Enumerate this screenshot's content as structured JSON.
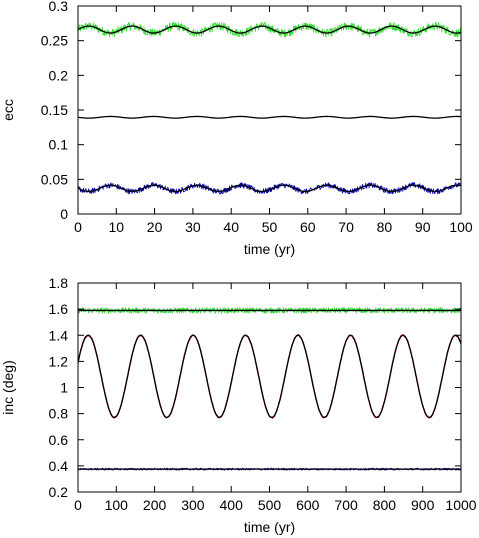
{
  "chart_data": [
    {
      "type": "line",
      "xlabel": "time (yr)",
      "ylabel": "ecc",
      "xlim": [
        0,
        100
      ],
      "ylim": [
        0,
        0.3
      ],
      "xticks": [
        0,
        10,
        20,
        30,
        40,
        50,
        60,
        70,
        80,
        90,
        100
      ],
      "yticks": [
        0,
        0.05,
        0.1,
        0.15,
        0.2,
        0.25,
        0.3
      ],
      "ytick_labels": [
        "0",
        "0.05",
        "0.1",
        "0.15",
        "0.2",
        "0.25",
        "0.3"
      ],
      "grid": false,
      "series": [
        {
          "color": "#33dd33",
          "style": "noisy-band",
          "mean": 0.266,
          "amplitude": 0.005,
          "period": 11.3,
          "phase": 0,
          "noise": 0.006
        },
        {
          "color": "#000000",
          "style": "line",
          "mean": 0.266,
          "amplitude": 0.005,
          "period": 11.3,
          "phase": 0,
          "noise": 0
        },
        {
          "color": "#000000",
          "style": "line",
          "mean": 0.1395,
          "amplitude": 0.0012,
          "period": 11.3,
          "phase": 3.14,
          "noise": 0
        },
        {
          "color": "#0000aa",
          "style": "noisy-band",
          "mean": 0.037,
          "amplitude": 0.0045,
          "period": 11.3,
          "phase": 3.14,
          "noise": 0.004
        },
        {
          "color": "#000000",
          "style": "line",
          "mean": 0.037,
          "amplitude": 0.0045,
          "period": 11.3,
          "phase": 3.14,
          "noise": 0
        }
      ]
    },
    {
      "type": "line",
      "xlabel": "time (yr)",
      "ylabel": "inc (deg)",
      "xlim": [
        0,
        1000
      ],
      "ylim": [
        0.2,
        1.8
      ],
      "xticks": [
        0,
        100,
        200,
        300,
        400,
        500,
        600,
        700,
        800,
        900,
        1000
      ],
      "yticks": [
        0.2,
        0.4,
        0.6,
        0.8,
        1.0,
        1.2,
        1.4,
        1.6,
        1.8
      ],
      "ytick_labels": [
        "0.2",
        "0.4",
        "0.6",
        "0.8",
        "1",
        "1.2",
        "1.4",
        "1.6",
        "1.8"
      ],
      "grid": false,
      "series": [
        {
          "color": "#33dd33",
          "style": "noisy-band",
          "mean": 1.59,
          "amplitude": 0.0,
          "period": 137,
          "phase": 0,
          "noise": 0.022
        },
        {
          "color": "#000000",
          "style": "line",
          "mean": 1.59,
          "amplitude": 0.0,
          "period": 137,
          "phase": 0,
          "noise": 0
        },
        {
          "color": "#dd0000",
          "style": "line",
          "mean": 1.085,
          "amplitude": 0.315,
          "period": 137,
          "phase": 0.35,
          "noise": 0.006
        },
        {
          "color": "#000000",
          "style": "line",
          "mean": 1.085,
          "amplitude": 0.315,
          "period": 137,
          "phase": 0.35,
          "noise": 0
        },
        {
          "color": "#0000aa",
          "style": "noisy-band",
          "mean": 0.375,
          "amplitude": 0.0,
          "period": 137,
          "phase": 0,
          "noise": 0.008
        },
        {
          "color": "#000000",
          "style": "line",
          "mean": 0.375,
          "amplitude": 0.0,
          "period": 137,
          "phase": 0,
          "noise": 0
        }
      ]
    }
  ]
}
